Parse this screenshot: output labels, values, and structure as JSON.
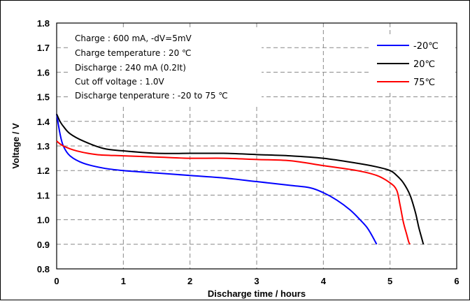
{
  "chart_data": {
    "type": "line",
    "xlabel": "Discharge time / hours",
    "ylabel": "Voltage / V",
    "xlim": [
      0,
      6
    ],
    "ylim": [
      0.8,
      1.8
    ],
    "xticks": [
      "0",
      "1",
      "2",
      "3",
      "4",
      "5",
      "6"
    ],
    "yticks": [
      "0.8",
      "0.9",
      "1.0",
      "1.1",
      "1.2",
      "1.3",
      "1.4",
      "1.5",
      "1.6",
      "1.7",
      "1.8"
    ],
    "grid": "dashed",
    "legend_position": "top-right",
    "annotations": [
      "Charge : 600 mA, -dV=5mV",
      "Charge temperature : 20 ℃",
      "Discharge : 240 mA (0.2It)",
      "Cut off voltage : 1.0V",
      "Discharge tenperature : -20 to 75 ℃"
    ],
    "series": [
      {
        "name": "-20℃",
        "color": "#0000ff",
        "x": [
          0,
          0.05,
          0.1,
          0.2,
          0.4,
          0.7,
          1.0,
          1.5,
          2.0,
          2.5,
          3.0,
          3.5,
          3.8,
          4.0,
          4.2,
          4.4,
          4.55,
          4.65,
          4.72,
          4.78,
          4.8
        ],
        "y": [
          1.43,
          1.35,
          1.3,
          1.26,
          1.23,
          1.21,
          1.2,
          1.19,
          1.18,
          1.17,
          1.155,
          1.14,
          1.13,
          1.11,
          1.08,
          1.04,
          1.0,
          0.97,
          0.94,
          0.91,
          0.9
        ]
      },
      {
        "name": "20℃",
        "color": "#000000",
        "x": [
          0,
          0.05,
          0.1,
          0.2,
          0.4,
          0.7,
          1.0,
          1.5,
          2.0,
          2.5,
          3.0,
          3.5,
          4.0,
          4.5,
          4.8,
          5.0,
          5.1,
          5.2,
          5.3,
          5.38,
          5.43,
          5.47,
          5.5
        ],
        "y": [
          1.43,
          1.4,
          1.38,
          1.35,
          1.32,
          1.29,
          1.28,
          1.27,
          1.27,
          1.27,
          1.265,
          1.26,
          1.25,
          1.23,
          1.215,
          1.2,
          1.18,
          1.15,
          1.1,
          1.03,
          0.97,
          0.93,
          0.9
        ]
      },
      {
        "name": "75℃",
        "color": "#ff0000",
        "x": [
          0,
          0.1,
          0.3,
          0.6,
          1.0,
          1.5,
          2.0,
          2.5,
          3.0,
          3.5,
          4.0,
          4.5,
          4.8,
          5.0,
          5.1,
          5.15,
          5.2,
          5.25,
          5.28,
          5.3
        ],
        "y": [
          1.32,
          1.3,
          1.28,
          1.265,
          1.26,
          1.255,
          1.25,
          1.25,
          1.245,
          1.24,
          1.22,
          1.2,
          1.18,
          1.15,
          1.12,
          1.06,
          0.99,
          0.94,
          0.91,
          0.9
        ]
      }
    ]
  }
}
